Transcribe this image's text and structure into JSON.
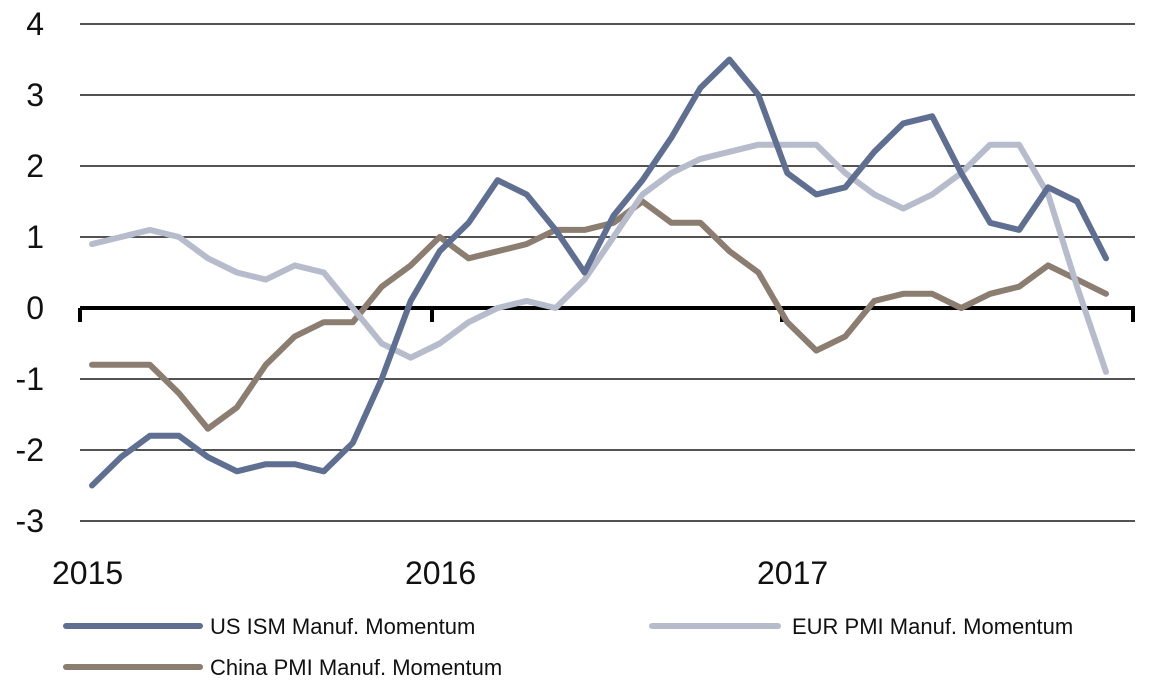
{
  "chart_data": {
    "type": "line",
    "title": "",
    "xlabel": "",
    "ylabel": "",
    "ylim": [
      -3,
      4
    ],
    "yticks": [
      "4",
      "3",
      "2",
      "1",
      "0",
      "-1",
      "-2",
      "-3"
    ],
    "x_tick_labels": [
      "2015",
      "2016",
      "2017"
    ],
    "x": [
      "2015-01",
      "2015-02",
      "2015-03",
      "2015-04",
      "2015-05",
      "2015-06",
      "2015-07",
      "2015-08",
      "2015-09",
      "2015-10",
      "2015-11",
      "2015-12",
      "2016-01",
      "2016-02",
      "2016-03",
      "2016-04",
      "2016-05",
      "2016-06",
      "2016-07",
      "2016-08",
      "2016-09",
      "2016-10",
      "2016-11",
      "2016-12",
      "2017-01",
      "2017-02",
      "2017-03",
      "2017-04",
      "2017-05",
      "2017-06",
      "2017-07",
      "2017-08",
      "2017-09",
      "2017-10",
      "2017-11",
      "2017-12",
      "2018-01"
    ],
    "grid": true,
    "legend_position": "bottom",
    "series": [
      {
        "name": "US ISM Manuf. Momentum",
        "color": "#5f6f91",
        "values": [
          -2.5,
          -2.1,
          -1.8,
          -1.8,
          -2.1,
          -2.3,
          -2.2,
          -2.2,
          -2.3,
          -1.9,
          -1.0,
          0.1,
          0.8,
          1.2,
          1.8,
          1.6,
          1.1,
          0.5,
          1.3,
          1.8,
          2.4,
          3.1,
          3.5,
          3.0,
          1.9,
          1.6,
          1.7,
          2.2,
          2.6,
          2.7,
          1.9,
          1.2,
          1.1,
          1.7,
          1.5,
          0.7,
          null
        ]
      },
      {
        "name": "EUR PMI Manuf. Momentum",
        "color": "#b6bccb",
        "values": [
          0.9,
          1.0,
          1.1,
          1.0,
          0.7,
          0.5,
          0.4,
          0.6,
          0.5,
          0.0,
          -0.5,
          -0.7,
          -0.5,
          -0.2,
          0.0,
          0.1,
          0.0,
          0.4,
          1.0,
          1.6,
          1.9,
          2.1,
          2.2,
          2.3,
          2.3,
          2.3,
          1.9,
          1.6,
          1.4,
          1.6,
          1.9,
          2.3,
          2.3,
          1.6,
          0.3,
          -0.9,
          null
        ]
      },
      {
        "name": "China PMI Manuf. Momentum",
        "color": "#8b7d6f",
        "values": [
          -0.8,
          -0.8,
          -0.8,
          -1.2,
          -1.7,
          -1.4,
          -0.8,
          -0.4,
          -0.2,
          -0.2,
          0.3,
          0.6,
          1.0,
          0.7,
          0.8,
          0.9,
          1.1,
          1.1,
          1.2,
          1.5,
          1.2,
          1.2,
          0.8,
          0.5,
          -0.2,
          -0.6,
          -0.4,
          0.1,
          0.2,
          0.2,
          0.0,
          0.2,
          0.3,
          0.6,
          0.4,
          0.2,
          null
        ]
      }
    ]
  }
}
